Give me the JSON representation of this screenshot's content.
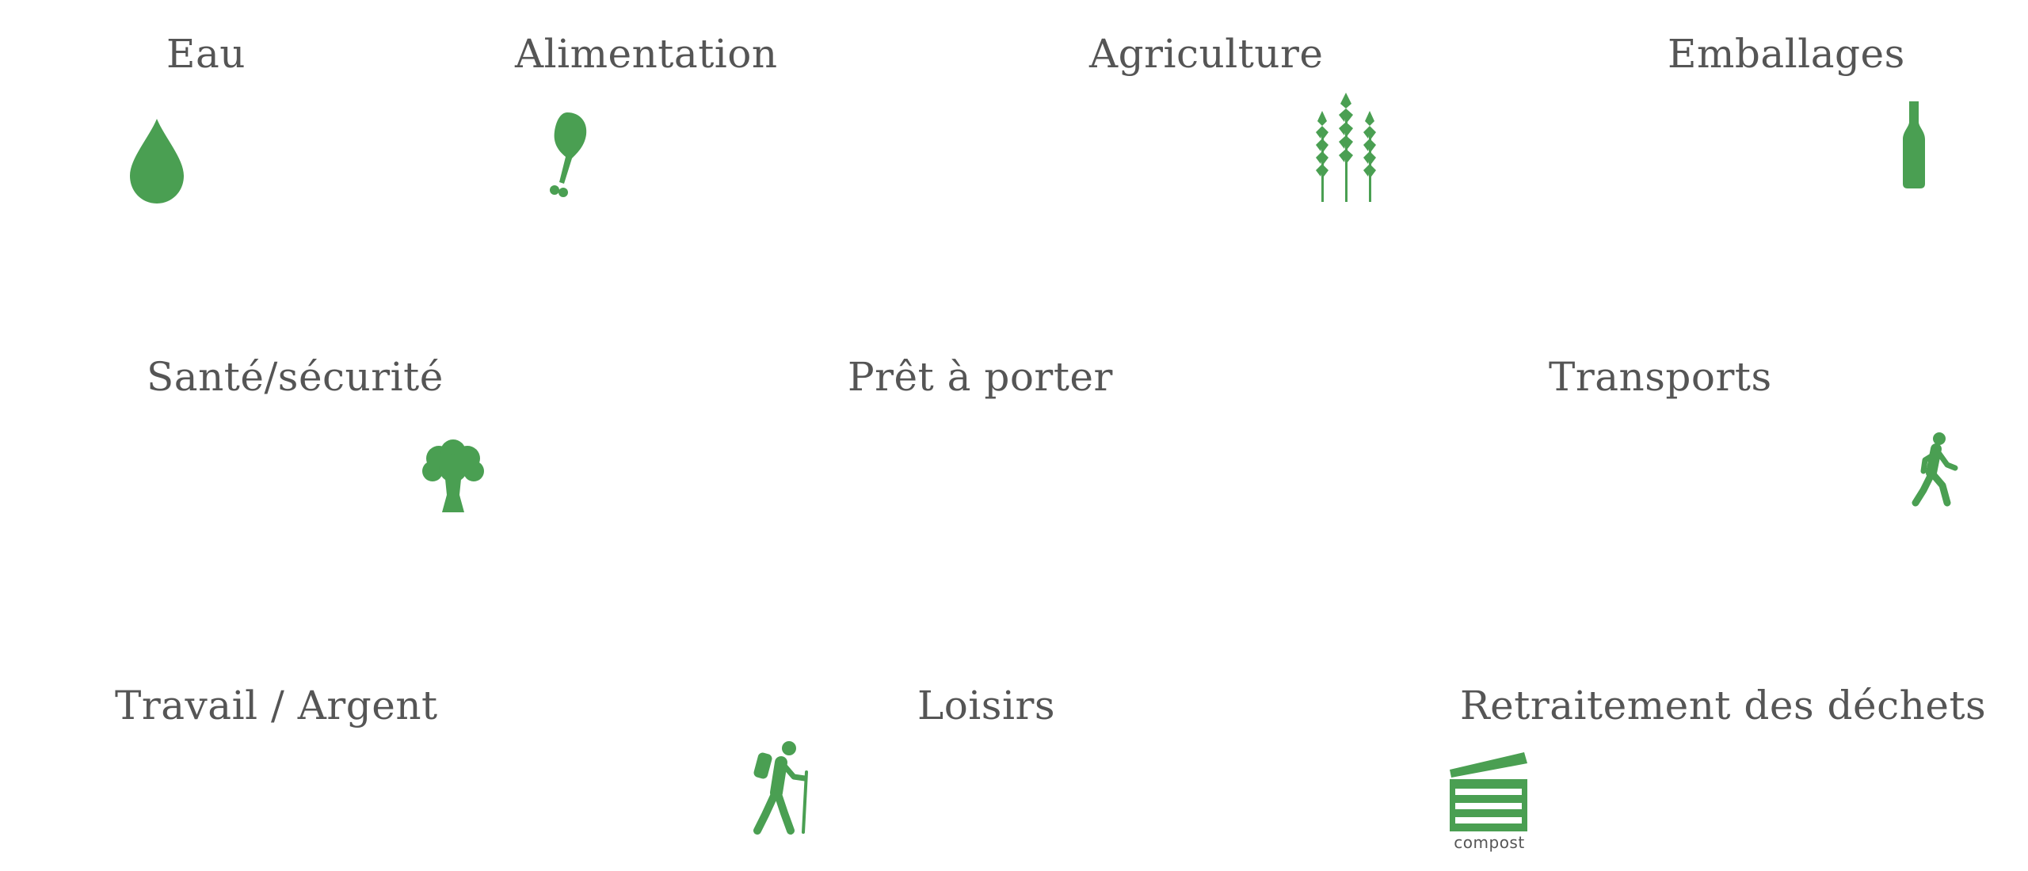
{
  "accent_color": "#4a9f52",
  "text_color": "#555555",
  "categories": [
    {
      "label": "Eau",
      "icon": "water-drop-icon"
    },
    {
      "label": "Alimentation",
      "icon": "chicken-leg-icon"
    },
    {
      "label": "Agriculture",
      "icon": "wheat-icon"
    },
    {
      "label": "Emballages",
      "icon": "bottle-icon"
    },
    {
      "label": "Santé/sécurité",
      "icon": "broccoli-icon"
    },
    {
      "label": "Prêt à porter",
      "icon": ""
    },
    {
      "label": "Transports",
      "icon": "walking-person-icon"
    },
    {
      "label": "Travail / Argent",
      "icon": ""
    },
    {
      "label": "Loisirs",
      "icon": "hiker-icon"
    },
    {
      "label": "Retraitement des déchets",
      "icon": "compost-bin-icon"
    }
  ],
  "compost_label": "compost"
}
